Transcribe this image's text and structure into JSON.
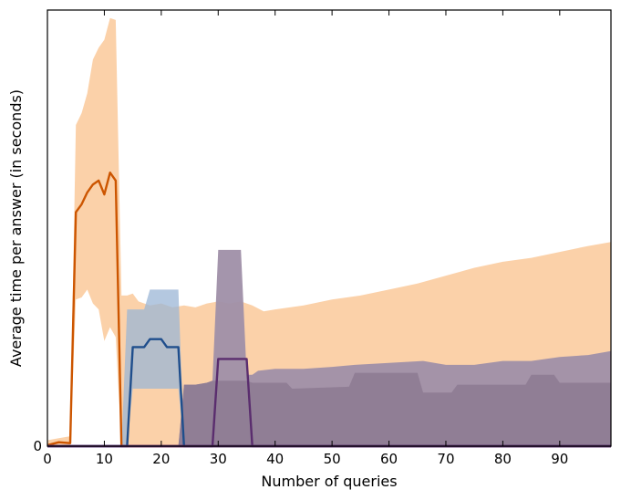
{
  "chart_data": {
    "type": "line",
    "title": "",
    "xlabel": "Number of queries",
    "ylabel": "Average time per answer (in seconds)",
    "xlim": [
      0,
      99
    ],
    "ylim": [
      0,
      22
    ],
    "xticks": [
      0,
      10,
      20,
      30,
      40,
      50,
      60,
      70,
      80,
      90
    ],
    "xtick_labels": [
      "0",
      "10",
      "20",
      "30",
      "40",
      "50",
      "60",
      "70",
      "80",
      "90"
    ],
    "yticks": [
      0
    ],
    "ytick_labels": [
      "0"
    ],
    "grid": false,
    "legend": "none",
    "series": [
      {
        "color": "#cc5500",
        "band_color": "#f9c28c",
        "band_opacity": 0.75,
        "line": [
          [
            0,
            0.05
          ],
          [
            2,
            0.2
          ],
          [
            4,
            0.15
          ],
          [
            5,
            11.8
          ],
          [
            6,
            12.2
          ],
          [
            7,
            12.8
          ],
          [
            8,
            13.2
          ],
          [
            9,
            13.4
          ],
          [
            10,
            12.7
          ],
          [
            11,
            13.8
          ],
          [
            12,
            13.4
          ],
          [
            13,
            0
          ],
          [
            99,
            0
          ]
        ],
        "band_upper": [
          [
            0,
            0.3
          ],
          [
            2,
            0.4
          ],
          [
            4,
            0.5
          ],
          [
            5,
            16.2
          ],
          [
            6,
            16.8
          ],
          [
            7,
            17.8
          ],
          [
            8,
            19.5
          ],
          [
            9,
            20.1
          ],
          [
            10,
            20.5
          ],
          [
            11,
            21.6
          ],
          [
            12,
            21.5
          ],
          [
            13,
            7.6
          ],
          [
            14,
            7.6
          ],
          [
            15,
            7.7
          ],
          [
            16,
            7.3
          ],
          [
            18,
            7.1
          ],
          [
            20,
            7.2
          ],
          [
            22,
            7.0
          ],
          [
            24,
            7.1
          ],
          [
            26,
            7.0
          ],
          [
            28,
            7.2
          ],
          [
            30,
            7.3
          ],
          [
            32,
            7.2
          ],
          [
            34,
            7.3
          ],
          [
            36,
            7.1
          ],
          [
            38,
            6.8
          ],
          [
            40,
            6.9
          ],
          [
            45,
            7.1
          ],
          [
            50,
            7.4
          ],
          [
            55,
            7.6
          ],
          [
            60,
            7.9
          ],
          [
            65,
            8.2
          ],
          [
            70,
            8.6
          ],
          [
            75,
            9.0
          ],
          [
            80,
            9.3
          ],
          [
            85,
            9.5
          ],
          [
            90,
            9.8
          ],
          [
            95,
            10.1
          ],
          [
            99,
            10.3
          ]
        ],
        "band_lower": [
          [
            0,
            0
          ],
          [
            4,
            0
          ],
          [
            5,
            7.4
          ],
          [
            6,
            7.5
          ],
          [
            7,
            7.9
          ],
          [
            8,
            7.2
          ],
          [
            9,
            6.9
          ],
          [
            10,
            5.3
          ],
          [
            11,
            6.0
          ],
          [
            12,
            5.5
          ],
          [
            13,
            0
          ],
          [
            99,
            0
          ]
        ]
      },
      {
        "color": "#1f4e8c",
        "band_color": "#9bb6d6",
        "band_opacity": 0.75,
        "line": [
          [
            0,
            0
          ],
          [
            14,
            0
          ],
          [
            15,
            5.0
          ],
          [
            17,
            5.0
          ],
          [
            18,
            5.4
          ],
          [
            20,
            5.4
          ],
          [
            21,
            5.0
          ],
          [
            23,
            5.0
          ],
          [
            24,
            0
          ],
          [
            99,
            0
          ]
        ],
        "band_upper": [
          [
            0,
            0
          ],
          [
            13,
            0
          ],
          [
            14,
            6.9
          ],
          [
            17,
            6.9
          ],
          [
            18,
            7.9
          ],
          [
            20,
            7.9
          ],
          [
            21,
            7.9
          ],
          [
            23,
            7.9
          ],
          [
            24,
            0
          ],
          [
            99,
            0
          ]
        ],
        "band_lower": [
          [
            0,
            0
          ],
          [
            14,
            0
          ],
          [
            15,
            2.9
          ],
          [
            23,
            2.9
          ],
          [
            24,
            0
          ],
          [
            99,
            0
          ]
        ]
      },
      {
        "color": "#5a2d6e",
        "band_color": "#9f8fa8",
        "band_opacity": 0.95,
        "line": [
          [
            0,
            0
          ],
          [
            29,
            0
          ],
          [
            30,
            4.4
          ],
          [
            35,
            4.4
          ],
          [
            36,
            0
          ],
          [
            99,
            0
          ]
        ],
        "band_upper": [
          [
            0,
            0
          ],
          [
            23,
            0
          ],
          [
            24,
            3.1
          ],
          [
            26,
            3.1
          ],
          [
            28,
            3.2
          ],
          [
            29,
            3.3
          ],
          [
            30,
            9.9
          ],
          [
            34,
            9.9
          ],
          [
            35,
            3.6
          ],
          [
            36,
            3.6
          ],
          [
            37,
            3.8
          ],
          [
            40,
            3.9
          ],
          [
            45,
            3.9
          ],
          [
            50,
            4.0
          ],
          [
            54,
            4.1
          ],
          [
            60,
            4.2
          ],
          [
            66,
            4.3
          ],
          [
            70,
            4.1
          ],
          [
            75,
            4.1
          ],
          [
            80,
            4.3
          ],
          [
            85,
            4.3
          ],
          [
            90,
            4.5
          ],
          [
            95,
            4.6
          ],
          [
            99,
            4.8
          ]
        ],
        "band_lower": [
          [
            0,
            0
          ],
          [
            99,
            0
          ]
        ]
      },
      {
        "color": "#5a2d6e",
        "band_color": "#8d7a92",
        "band_opacity": 0.85,
        "line": [
          [
            0,
            0
          ],
          [
            99,
            0
          ]
        ],
        "band_upper": [
          [
            0,
            0
          ],
          [
            23,
            0
          ],
          [
            24,
            3.1
          ],
          [
            26,
            3.1
          ],
          [
            28,
            3.2
          ],
          [
            29,
            3.3
          ],
          [
            35,
            3.3
          ],
          [
            36,
            3.2
          ],
          [
            42,
            3.2
          ],
          [
            43,
            2.9
          ],
          [
            53,
            3.0
          ],
          [
            54,
            3.7
          ],
          [
            65,
            3.7
          ],
          [
            66,
            2.7
          ],
          [
            71,
            2.7
          ],
          [
            72,
            3.1
          ],
          [
            84,
            3.1
          ],
          [
            85,
            3.6
          ],
          [
            89,
            3.6
          ],
          [
            90,
            3.2
          ],
          [
            99,
            3.2
          ]
        ],
        "band_lower": [
          [
            0,
            0
          ],
          [
            99,
            0
          ]
        ]
      }
    ]
  }
}
